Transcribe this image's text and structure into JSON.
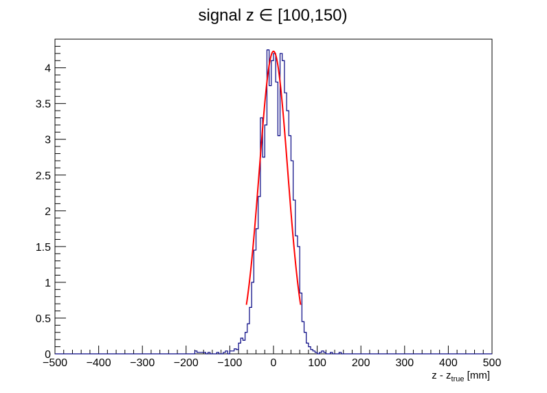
{
  "chart_data": {
    "type": "histogram",
    "title": "signal z ∈ [100,150)",
    "xlabel_main": "z - z",
    "xlabel_sub": "true",
    "xlabel_unit": " [mm]",
    "ylabel": "",
    "xlim": [
      -500,
      500
    ],
    "ylim": [
      0,
      4.4
    ],
    "xticks": [
      -500,
      -400,
      -300,
      -200,
      -100,
      0,
      100,
      200,
      300,
      400,
      500
    ],
    "xtick_labels": [
      "−500",
      "−400",
      "−300",
      "−200",
      "−100",
      "0",
      "100",
      "200",
      "300",
      "400",
      "500"
    ],
    "yticks": [
      0,
      0.5,
      1,
      1.5,
      2,
      2.5,
      3,
      3.5,
      4
    ],
    "ytick_labels": [
      "0",
      "0.5",
      "1",
      "1.5",
      "2",
      "2.5",
      "3",
      "3.5",
      "4"
    ],
    "grid": false,
    "legend": "none",
    "histogram": {
      "bin_width": 5,
      "bin_start": -180,
      "values": [
        0.04,
        0.02,
        0.02,
        0.02,
        0.02,
        0.0,
        0.02,
        0.0,
        0.0,
        0.0,
        0.02,
        0.0,
        0.0,
        0.02,
        0.04,
        0.0,
        0.04,
        0.04,
        0.07,
        0.06,
        0.15,
        0.22,
        0.19,
        0.3,
        0.42,
        0.65,
        1.0,
        1.45,
        1.75,
        2.2,
        3.3,
        2.75,
        3.2,
        4.25,
        3.75,
        4.1,
        4.2,
        3.8,
        3.05,
        4.2,
        4.1,
        3.65,
        3.4,
        3.05,
        2.7,
        2.15,
        1.65,
        1.5,
        0.85,
        0.45,
        0.3,
        0.15,
        0.1,
        0.06,
        0.04,
        0.02,
        0.0,
        0.02,
        0.04,
        0.02,
        0.0,
        0.0,
        0.02,
        0.0,
        0.0,
        0.0,
        0.02
      ],
      "color": "#000080"
    },
    "fit": {
      "function": "gaussian",
      "amplitude": 4.23,
      "mean": 0,
      "sigma": 32.5,
      "range": [
        -62,
        62
      ],
      "color": "#ff0000"
    }
  }
}
